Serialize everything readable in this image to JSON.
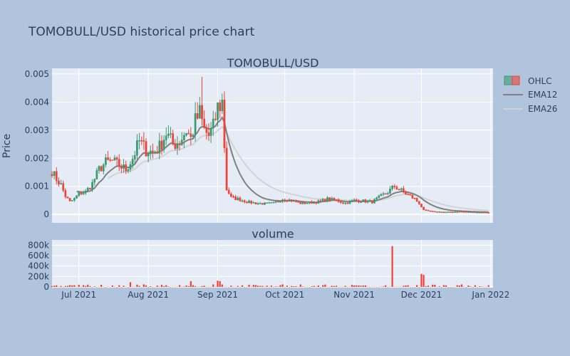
{
  "title": "TOMOBULL/USD historical price chart",
  "colors": {
    "page_bg": "#b0c4de",
    "plot_bg": "#e5ecf6",
    "grid": "#ffffff",
    "text": "#2a3f5f",
    "increasing": "#3d9970",
    "decreasing": "#ef4336",
    "ema12": "#808080",
    "ema26": "#d3d3d3",
    "volume": "#ef4336"
  },
  "chart_data": [
    {
      "type": "candlestick",
      "subplot_title": "TOMOBULL/USD",
      "ylabel": "Price",
      "xlabel": "",
      "x_range": [
        "2021-06-19",
        "2022-01-02"
      ],
      "ylim": [
        -0.0003,
        0.0052
      ],
      "y_ticks": [
        {
          "value": 0,
          "label": "0"
        },
        {
          "value": 0.001,
          "label": "0.001"
        },
        {
          "value": 0.002,
          "label": "0.002"
        },
        {
          "value": 0.003,
          "label": "0.003"
        },
        {
          "value": 0.004,
          "label": "0.004"
        },
        {
          "value": 0.005,
          "label": "0.005"
        }
      ],
      "legend": {
        "position": "top-right",
        "items": [
          {
            "name": "OHLC",
            "kind": "candlestick"
          },
          {
            "name": "EMA12",
            "kind": "line",
            "color": "#808080"
          },
          {
            "name": "EMA26",
            "kind": "line",
            "color": "#d3d3d3"
          }
        ]
      },
      "ohlc_anchor_note_free": true,
      "close_anchors": [
        [
          "2021-06-19",
          0.00155
        ],
        [
          "2021-06-21",
          0.00125
        ],
        [
          "2021-06-23",
          0.00105
        ],
        [
          "2021-06-25",
          0.00065
        ],
        [
          "2021-06-27",
          0.00045
        ],
        [
          "2021-06-29",
          0.00055
        ],
        [
          "2021-07-01",
          0.00075
        ],
        [
          "2021-07-04",
          0.0008
        ],
        [
          "2021-07-07",
          0.0011
        ],
        [
          "2021-07-10",
          0.0016
        ],
        [
          "2021-07-13",
          0.00185
        ],
        [
          "2021-07-16",
          0.0019
        ],
        [
          "2021-07-19",
          0.00175
        ],
        [
          "2021-07-22",
          0.0016
        ],
        [
          "2021-07-25",
          0.002
        ],
        [
          "2021-07-28",
          0.0026
        ],
        [
          "2021-07-31",
          0.0023
        ],
        [
          "2021-08-03",
          0.0022
        ],
        [
          "2021-08-06",
          0.0024
        ],
        [
          "2021-08-09",
          0.0029
        ],
        [
          "2021-08-12",
          0.0025
        ],
        [
          "2021-08-15",
          0.0026
        ],
        [
          "2021-08-18",
          0.003
        ],
        [
          "2021-08-20",
          0.0027
        ],
        [
          "2021-08-22",
          0.0033
        ],
        [
          "2021-08-24",
          0.0036
        ],
        [
          "2021-08-26",
          0.003
        ],
        [
          "2021-08-28",
          0.0028
        ],
        [
          "2021-08-30",
          0.0031
        ],
        [
          "2021-09-01",
          0.0038
        ],
        [
          "2021-09-03",
          0.004
        ],
        [
          "2021-09-05",
          0.0009
        ],
        [
          "2021-09-07",
          0.0006
        ],
        [
          "2021-09-10",
          0.00055
        ],
        [
          "2021-09-14",
          0.00045
        ],
        [
          "2021-09-18",
          0.0004
        ],
        [
          "2021-09-22",
          0.00038
        ],
        [
          "2021-09-26",
          0.0004
        ],
        [
          "2021-09-30",
          0.00055
        ],
        [
          "2021-10-04",
          0.0005
        ],
        [
          "2021-10-08",
          0.0004
        ],
        [
          "2021-10-12",
          0.00042
        ],
        [
          "2021-10-16",
          0.00045
        ],
        [
          "2021-10-20",
          0.00055
        ],
        [
          "2021-10-24",
          0.0005
        ],
        [
          "2021-10-28",
          0.0004
        ],
        [
          "2021-11-01",
          0.0005
        ],
        [
          "2021-11-05",
          0.00048
        ],
        [
          "2021-11-09",
          0.00045
        ],
        [
          "2021-11-12",
          0.0006
        ],
        [
          "2021-11-16",
          0.0008
        ],
        [
          "2021-11-19",
          0.001
        ],
        [
          "2021-11-22",
          0.00085
        ],
        [
          "2021-11-25",
          0.0007
        ],
        [
          "2021-11-28",
          0.00055
        ],
        [
          "2021-11-30",
          0.0004
        ],
        [
          "2021-12-02",
          0.00015
        ],
        [
          "2021-12-06",
          0.0001
        ],
        [
          "2021-12-12",
          8e-05
        ],
        [
          "2021-12-18",
          0.0001
        ],
        [
          "2021-12-24",
          8e-05
        ],
        [
          "2021-12-31",
          7e-05
        ]
      ],
      "highlights": [
        {
          "date": "2021-08-25",
          "high": 0.0049
        },
        {
          "date": "2021-09-03",
          "high": 0.0043
        },
        {
          "date": "2021-08-23",
          "high": 0.004
        }
      ]
    },
    {
      "type": "bar",
      "subplot_title": "volume",
      "ylabel": "",
      "ylim": [
        0,
        900000
      ],
      "y_ticks": [
        {
          "value": 0,
          "label": "0"
        },
        {
          "value": 200000,
          "label": "200k"
        },
        {
          "value": 400000,
          "label": "400k"
        },
        {
          "value": 600000,
          "label": "600k"
        },
        {
          "value": 800000,
          "label": "800k"
        }
      ],
      "x_ticks": [
        {
          "date": "2021-07-01",
          "label": "Jul 2021"
        },
        {
          "date": "2021-08-01",
          "label": "Aug 2021"
        },
        {
          "date": "2021-09-01",
          "label": "Sep 2021"
        },
        {
          "date": "2021-10-01",
          "label": "Oct 2021"
        },
        {
          "date": "2021-11-01",
          "label": "Nov 2021"
        },
        {
          "date": "2021-12-01",
          "label": "Dec 2021"
        },
        {
          "date": "2022-01-01",
          "label": "Jan 2022"
        }
      ],
      "spikes": [
        {
          "date": "2021-11-18",
          "value": 780000
        },
        {
          "date": "2021-12-01",
          "value": 250000
        },
        {
          "date": "2021-12-02",
          "value": 230000
        },
        {
          "date": "2021-08-20",
          "value": 110000
        },
        {
          "date": "2021-09-01",
          "value": 120000
        },
        {
          "date": "2021-09-02",
          "value": 110000
        },
        {
          "date": "2021-07-24",
          "value": 90000
        }
      ]
    }
  ]
}
